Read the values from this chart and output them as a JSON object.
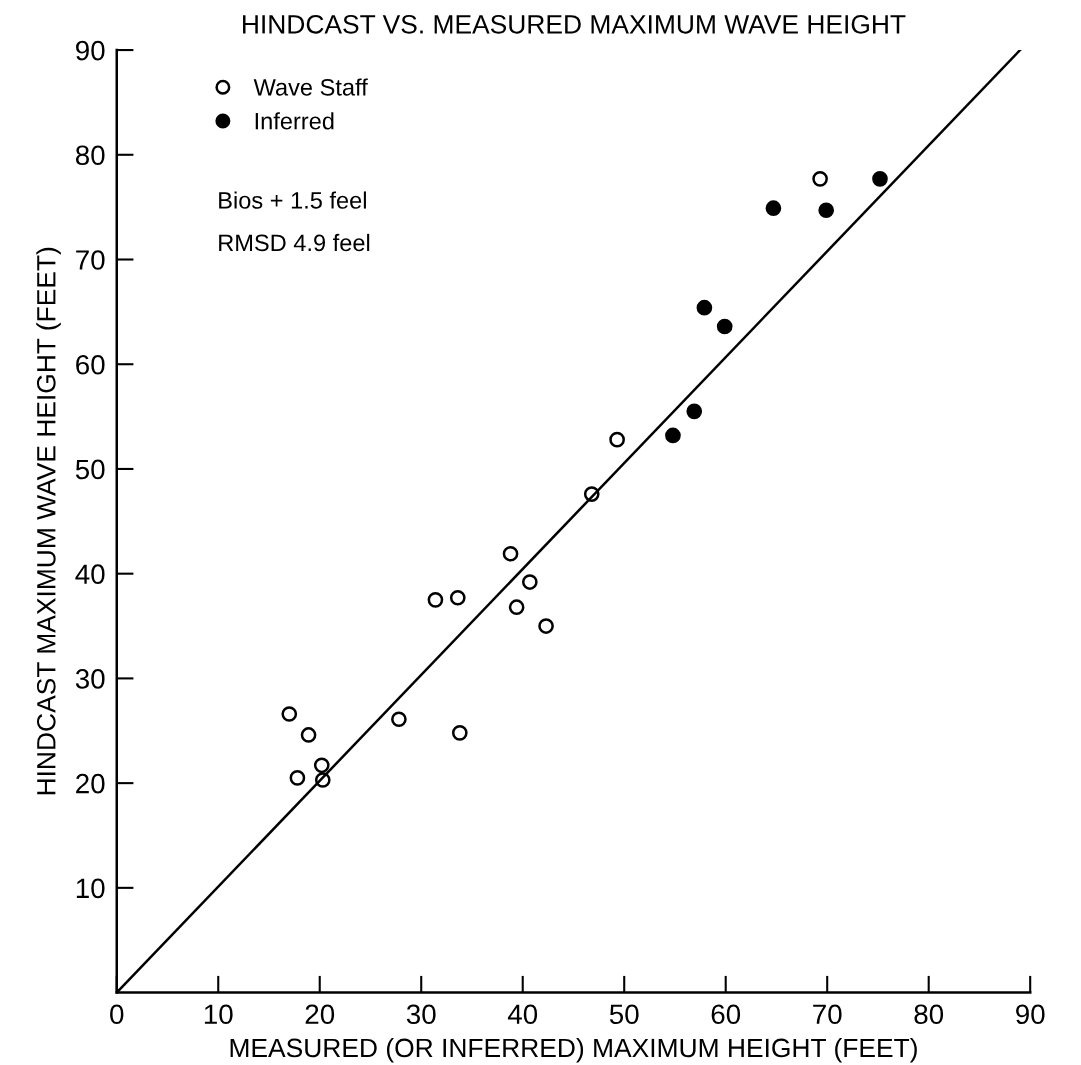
{
  "chart_data": {
    "type": "scatter",
    "title": "HINDCAST VS. MEASURED MAXIMUM WAVE HEIGHT",
    "xlabel": "MEASURED (OR INFERRED) MAXIMUM HEIGHT (FEET)",
    "ylabel": "HINDCAST MAXIMUM WAVE HEIGHT (FEET)",
    "series": [
      {
        "name": "Wave Staff",
        "color": "#000000",
        "marker": "circle",
        "x": [
          17.0,
          18.9,
          17.8,
          20.2,
          20.3,
          27.8,
          31.4,
          33.6,
          33.8,
          38.8,
          39.4,
          40.7,
          42.3,
          46.8,
          49.3,
          69.3
        ],
        "values": [
          26.6,
          24.6,
          20.5,
          21.7,
          20.3,
          26.1,
          37.5,
          37.7,
          24.8,
          41.9,
          36.8,
          39.2,
          35.0,
          47.6,
          52.8,
          77.7
        ]
      },
      {
        "name": "Inferred",
        "color": "#000000",
        "marker": "circle",
        "x": [
          54.8,
          56.9,
          57.9,
          59.9,
          64.7,
          69.9,
          75.2
        ],
        "values": [
          53.2,
          55.5,
          65.4,
          63.6,
          74.9,
          74.7,
          77.7
        ]
      },
      {
        "type": "line",
        "color": "#000000",
        "x": [
          0,
          89
        ],
        "values": [
          0,
          90
        ]
      }
    ],
    "annotations": [
      "Bios + 1.5 feel",
      "RMSD 4.9 feel"
    ],
    "xlim": [
      0,
      90
    ],
    "ylim": [
      0,
      90
    ],
    "xticks": [
      0,
      10,
      20,
      30,
      40,
      50,
      60,
      70,
      80,
      90
    ],
    "yticks": [
      10,
      20,
      30,
      40,
      50,
      60,
      70,
      80,
      90
    ],
    "grid": false,
    "legend": "top left"
  }
}
